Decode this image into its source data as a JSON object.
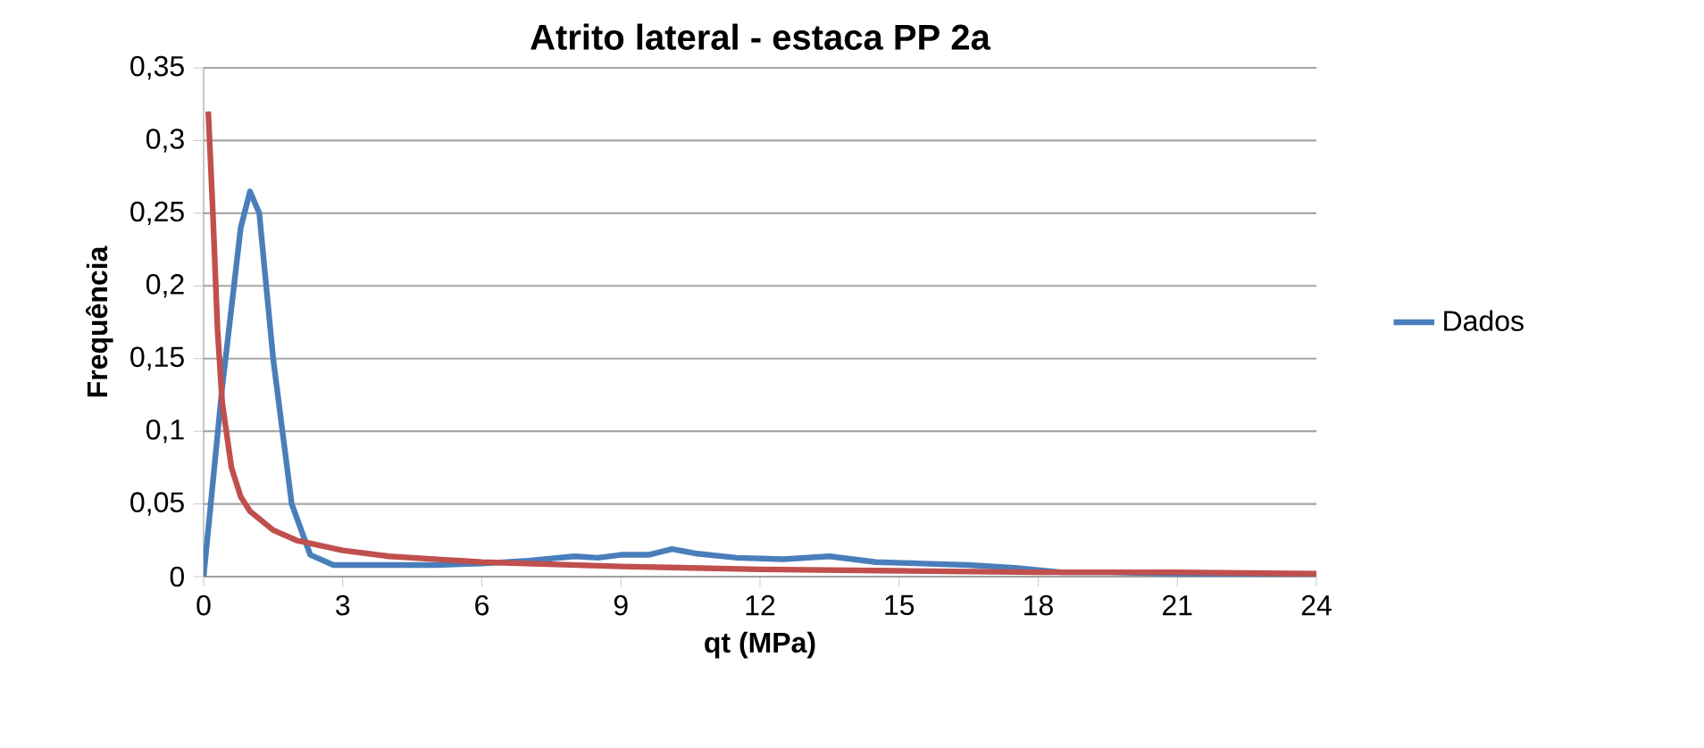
{
  "chart_data": {
    "type": "line",
    "title": "Atrito lateral - estaca PP 2a",
    "xlabel": "qt (MPa)",
    "ylabel": "Frequência",
    "xlim": [
      0,
      24
    ],
    "xticks": [
      0,
      3,
      6,
      9,
      12,
      15,
      18,
      21,
      24
    ],
    "ylim": [
      0,
      0.35
    ],
    "yticks": [
      0,
      {
        "value": 0.05,
        "label": "0,05"
      },
      {
        "value": 0.1,
        "label": "0,1"
      },
      {
        "value": 0.15,
        "label": "0,15"
      },
      {
        "value": 0.2,
        "label": "0,2"
      },
      {
        "value": 0.25,
        "label": "0,25"
      },
      {
        "value": 0.3,
        "label": "0,3"
      },
      {
        "value": 0.35,
        "label": "0,35"
      }
    ],
    "grid": "y",
    "legend": "right",
    "marker": "none",
    "line_style": "solid",
    "series": [
      {
        "name": "Dados",
        "color": "#4a7ebb",
        "x": [
          0,
          0.4,
          0.8,
          1.0,
          1.2,
          1.5,
          1.9,
          2.3,
          2.8,
          4,
          5,
          6,
          7,
          8,
          8.5,
          9,
          9.6,
          10.1,
          10.6,
          11.5,
          12.5,
          13.5,
          14.5,
          15.5,
          16.5,
          17.5,
          18.5,
          19.5,
          21,
          22,
          23,
          24
        ],
        "values": [
          0,
          0.13,
          0.24,
          0.265,
          0.25,
          0.15,
          0.05,
          0.015,
          0.008,
          0.008,
          0.008,
          0.009,
          0.011,
          0.014,
          0.013,
          0.015,
          0.015,
          0.019,
          0.016,
          0.013,
          0.012,
          0.014,
          0.01,
          0.009,
          0.008,
          0.006,
          0.003,
          0.003,
          0.002,
          0.002,
          0.001,
          0.001
        ]
      },
      {
        "color": "#c0504d",
        "x": [
          0.1,
          0.2,
          0.3,
          0.4,
          0.6,
          0.8,
          1,
          1.5,
          2,
          3,
          4,
          6,
          9,
          12,
          15,
          18,
          21,
          24
        ],
        "values": [
          0.32,
          0.25,
          0.17,
          0.12,
          0.075,
          0.055,
          0.045,
          0.032,
          0.025,
          0.018,
          0.014,
          0.01,
          0.007,
          0.005,
          0.004,
          0.003,
          0.003,
          0.002
        ]
      }
    ]
  }
}
